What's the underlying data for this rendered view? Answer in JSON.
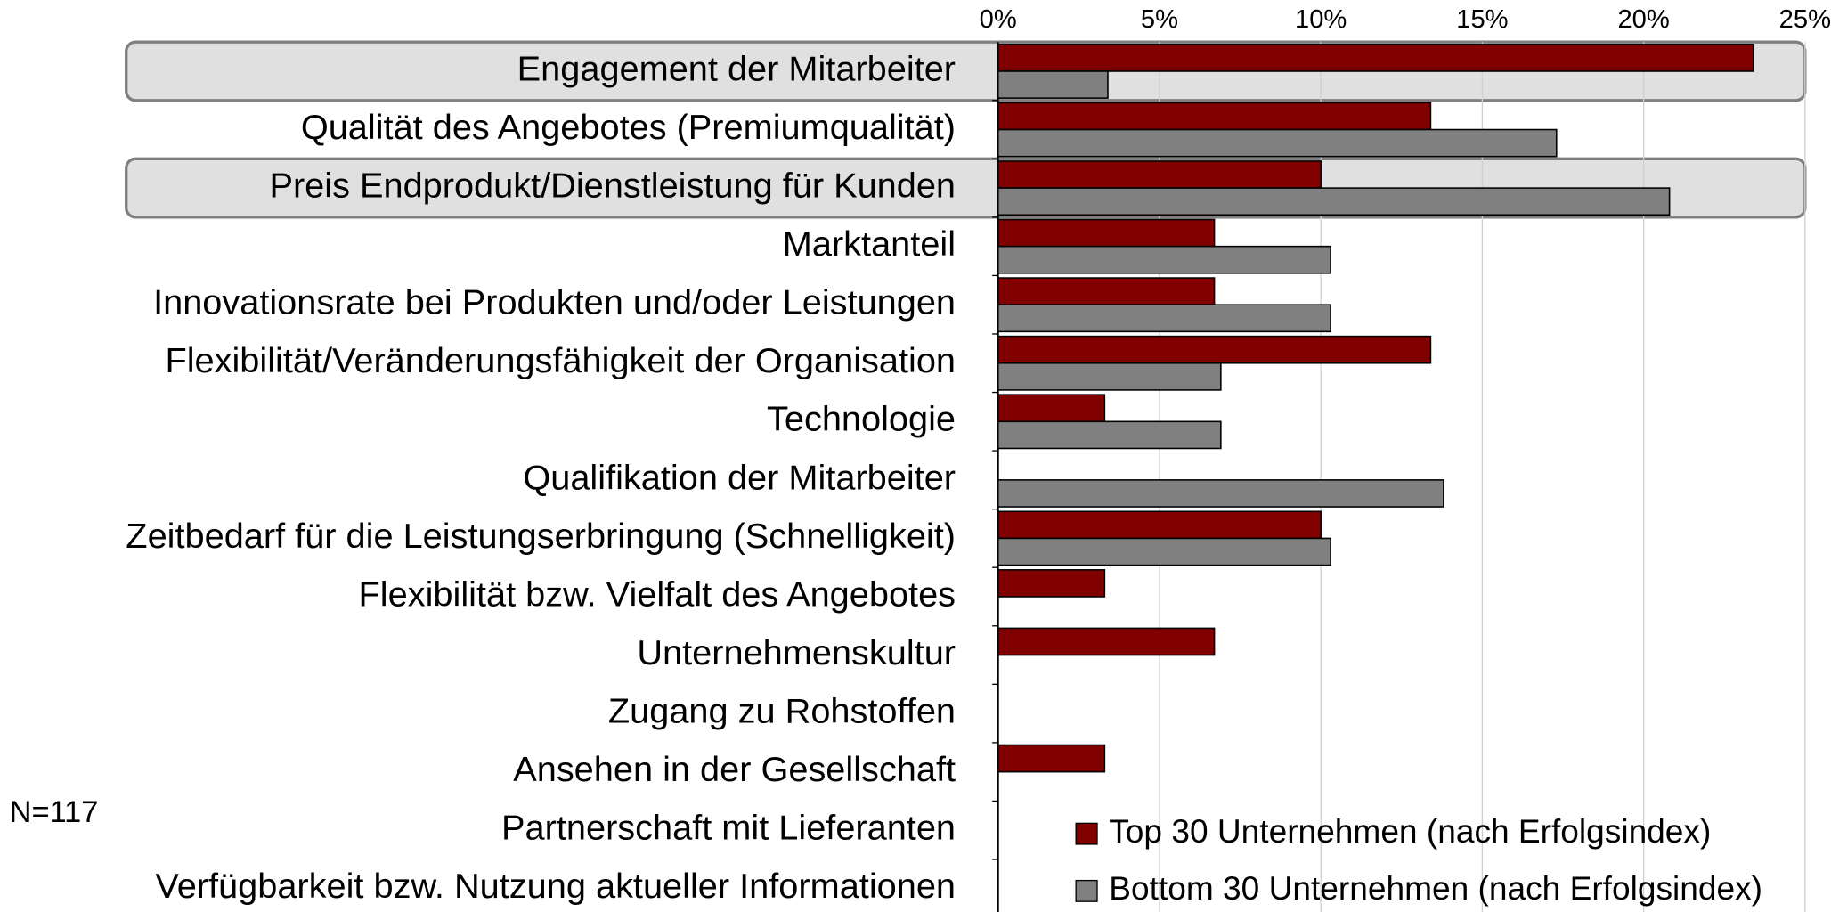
{
  "chart_data": {
    "type": "hbar",
    "categories": [
      "Engagement der Mitarbeiter",
      "Qualität des Angebotes (Premiumqualität)",
      "Preis Endprodukt/Dienstleistung für Kunden",
      "Marktanteil",
      "Innovationsrate bei Produkten und/oder Leistungen",
      "Flexibilität/Veränderungsfähigkeit der Organisation",
      "Technologie",
      "Qualifikation der Mitarbeiter",
      "Zeitbedarf für die Leistungserbringung (Schnelligkeit)",
      "Flexibilität bzw. Vielfalt des Angebotes",
      "Unternehmenskultur",
      "Zugang zu Rohstoffen",
      "Ansehen in der Gesellschaft",
      "Partnerschaft mit Lieferanten",
      "Verfügbarkeit bzw. Nutzung aktueller Informationen"
    ],
    "series": [
      {
        "name": "Top 30 Unternehmen (nach Erfolgsindex)",
        "color": "#800000",
        "values": [
          23.4,
          13.4,
          10.0,
          6.7,
          6.7,
          13.4,
          3.3,
          0,
          10.0,
          3.3,
          6.7,
          0,
          3.3,
          0,
          0
        ]
      },
      {
        "name": "Bottom 30 Unternehmen (nach Erfolgsindex)",
        "color": "#808080",
        "values": [
          3.4,
          17.3,
          20.8,
          10.3,
          10.3,
          6.9,
          6.9,
          13.8,
          10.3,
          0,
          0,
          0,
          0,
          0,
          0
        ]
      }
    ],
    "xlim": [
      0,
      25
    ],
    "xticks": [
      {
        "value": 0,
        "label": "0%"
      },
      {
        "value": 5,
        "label": "5%"
      },
      {
        "value": 10,
        "label": "10%"
      },
      {
        "value": 15,
        "label": "15%"
      },
      {
        "value": 20,
        "label": "20%"
      },
      {
        "value": 25,
        "label": "25%"
      }
    ],
    "grid": true,
    "legend": "lower right",
    "note": "N=117"
  }
}
